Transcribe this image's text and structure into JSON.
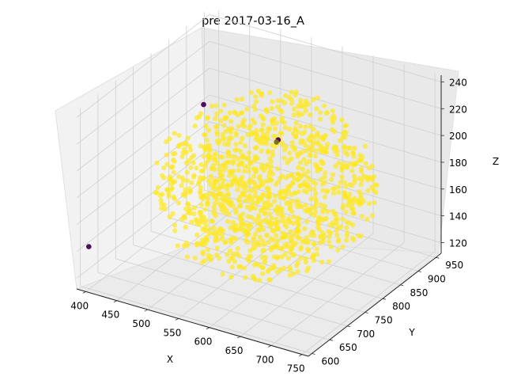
{
  "chart_data": {
    "type": "scatter",
    "projection": "3d",
    "title": "pre 2017-03-16_A",
    "xlabel": "X",
    "ylabel": "Y",
    "zlabel": "Z",
    "xlim": [
      385,
      760
    ],
    "ylim": [
      590,
      965
    ],
    "zlim": [
      112,
      245
    ],
    "xticks": [
      "400",
      "450",
      "500",
      "550",
      "600",
      "650",
      "700",
      "750"
    ],
    "yticks": [
      "600",
      "650",
      "700",
      "750",
      "800",
      "850",
      "900",
      "950"
    ],
    "zticks": [
      "120",
      "140",
      "160",
      "180",
      "200",
      "220",
      "240"
    ],
    "grid": true,
    "colormap": "viridis",
    "cloud": {
      "count": 1200,
      "x_range": [
        430,
        740
      ],
      "y_range": [
        600,
        950
      ],
      "z_range": [
        118,
        238
      ],
      "color": "#fde725"
    },
    "highlighted_points": [
      {
        "x": 392,
        "y": 612,
        "z": 140,
        "color": "#440154"
      },
      {
        "x": 470,
        "y": 800,
        "z": 218,
        "color": "#440154"
      },
      {
        "x": 585,
        "y": 810,
        "z": 205,
        "color": "#440154"
      },
      {
        "x": 572,
        "y": 828,
        "z": 198,
        "color": "#7a6a2a"
      }
    ]
  }
}
